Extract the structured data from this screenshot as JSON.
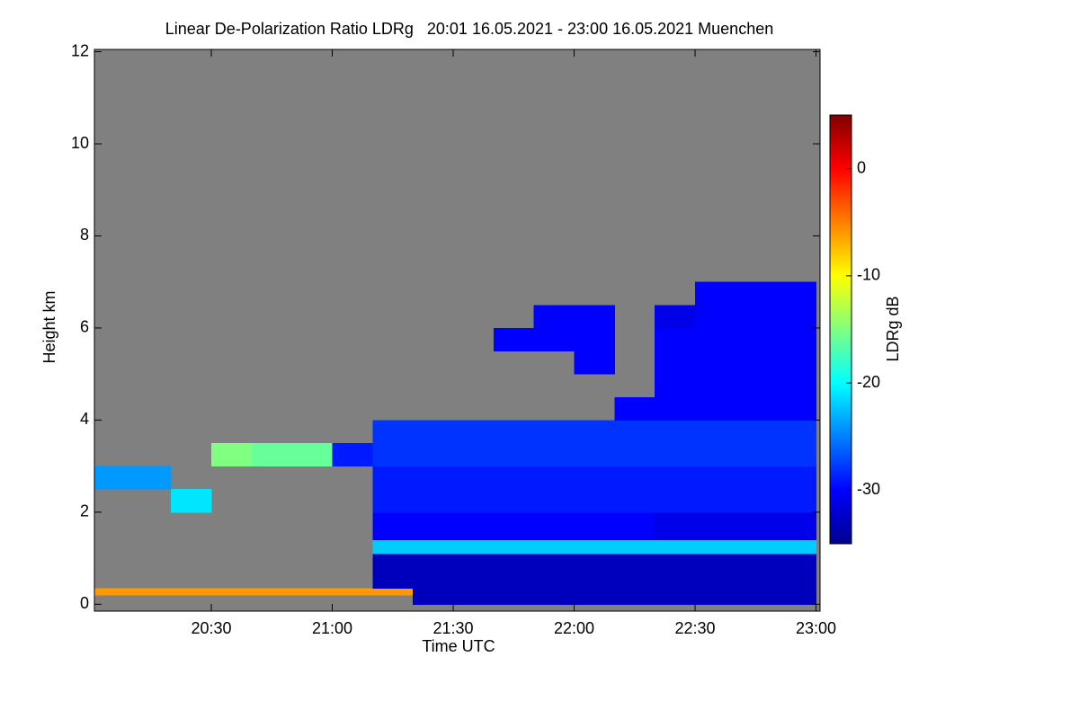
{
  "chart_data": {
    "type": "heatmap",
    "title": "Linear De-Polarization Ratio LDRg   20:01 16.05.2021 - 23:00 16.05.2021 Muenchen",
    "x_label": "Time UTC",
    "y_label": "Height km",
    "colorbar_label": "LDRg dB",
    "xlim": [
      1,
      181
    ],
    "xticks": [
      {
        "value": 30,
        "label": "20:30"
      },
      {
        "value": 60,
        "label": "21:00"
      },
      {
        "value": 90,
        "label": "21:30"
      },
      {
        "value": 120,
        "label": "22:00"
      },
      {
        "value": 150,
        "label": "22:30"
      },
      {
        "value": 180,
        "label": "23:00"
      }
    ],
    "ylim": [
      -0.15,
      12.05
    ],
    "yticks": [
      0,
      2,
      4,
      6,
      8,
      10,
      12
    ],
    "clim": [
      -35,
      5
    ],
    "cticks": [
      0,
      -10,
      -20,
      -30
    ],
    "colormap": [
      "#00008f",
      "#0000ff",
      "#0080ff",
      "#00ffff",
      "#80ff80",
      "#ffff00",
      "#ff8000",
      "#ff0000",
      "#800000"
    ],
    "missing_color": "#808080",
    "x_bins": [
      1,
      10,
      20,
      30,
      40,
      50,
      60,
      70,
      80,
      90,
      100,
      110,
      120,
      130,
      140,
      150,
      160,
      170,
      180
    ],
    "y_bins": [
      0,
      0.2,
      0.35,
      1.1,
      1.4,
      2,
      2.5,
      3,
      3.5,
      4,
      4.5,
      5,
      5.5,
      6,
      6.5,
      7
    ],
    "values": [
      [
        null,
        null,
        null,
        null,
        null,
        null,
        null,
        null,
        -33,
        -33,
        -33,
        -33,
        -33,
        -33,
        -33,
        -33,
        -33,
        -33
      ],
      [
        -6,
        -6,
        -6,
        -6,
        -6,
        -6,
        -6,
        -6,
        -33,
        -33,
        -33,
        -33,
        -33,
        -33,
        -33,
        -33,
        -33,
        -33
      ],
      [
        null,
        null,
        null,
        null,
        null,
        null,
        null,
        -33,
        -33,
        -33,
        -33,
        -33,
        -33,
        -33,
        -33,
        -33,
        -33,
        -33
      ],
      [
        null,
        null,
        null,
        null,
        null,
        null,
        null,
        -22,
        -22,
        -22,
        -22,
        -22,
        -22,
        -22,
        -22,
        -22,
        -22,
        -22
      ],
      [
        null,
        null,
        null,
        null,
        null,
        null,
        null,
        -30,
        -30,
        -30,
        -30,
        -30,
        -30,
        -30,
        -31,
        -31,
        -31,
        -31
      ],
      [
        null,
        null,
        -21,
        null,
        null,
        null,
        null,
        -29,
        -29,
        -29,
        -29,
        -29,
        -29,
        -29,
        -29,
        -29,
        -29,
        -29
      ],
      [
        -24,
        -24,
        null,
        null,
        null,
        null,
        null,
        -29,
        -29,
        -29,
        -29,
        -29,
        -29,
        -29,
        -29,
        -29,
        -29,
        -29
      ],
      [
        null,
        null,
        null,
        -15,
        -16,
        -16,
        -29,
        -28,
        -28,
        -28,
        -28,
        -28,
        -28,
        -28,
        -28,
        -28,
        -28,
        -28
      ],
      [
        null,
        null,
        null,
        null,
        null,
        null,
        null,
        -28,
        -28,
        -28,
        -28,
        -28,
        -28,
        -28,
        -28,
        -28,
        -28,
        -28
      ],
      [
        null,
        null,
        null,
        null,
        null,
        null,
        null,
        null,
        null,
        null,
        null,
        null,
        null,
        -30,
        -30,
        -30,
        -30,
        -30
      ],
      [
        null,
        null,
        null,
        null,
        null,
        null,
        null,
        null,
        null,
        null,
        null,
        null,
        null,
        null,
        -30,
        -30,
        -30,
        -30
      ],
      [
        null,
        null,
        null,
        null,
        null,
        null,
        null,
        null,
        null,
        null,
        null,
        null,
        -30,
        null,
        -30,
        -30,
        -30,
        -30
      ],
      [
        null,
        null,
        null,
        null,
        null,
        null,
        null,
        null,
        null,
        null,
        -30,
        -30,
        -30,
        null,
        -30,
        -30,
        -30,
        -30
      ],
      [
        null,
        null,
        null,
        null,
        null,
        null,
        null,
        null,
        null,
        null,
        null,
        -30,
        -30,
        null,
        -31,
        -30,
        -30,
        -30
      ],
      [
        null,
        null,
        null,
        null,
        null,
        null,
        null,
        null,
        null,
        null,
        null,
        null,
        null,
        null,
        null,
        -30,
        -30,
        -30
      ]
    ]
  }
}
